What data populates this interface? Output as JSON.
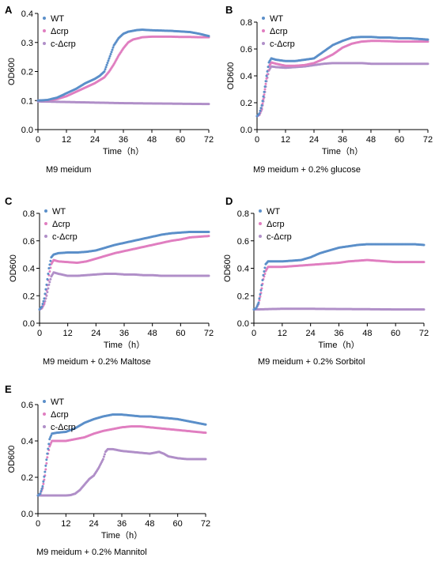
{
  "chart_data": [
    {
      "panel": "A",
      "type": "scatter",
      "caption": "M9 meidum",
      "xlabel": "Time（h）",
      "ylabel": "OD600",
      "xlim": [
        0,
        72
      ],
      "ylim": [
        0,
        0.4
      ],
      "xticks": [
        0,
        12,
        24,
        36,
        48,
        60,
        72
      ],
      "yticks": [
        0.0,
        0.1,
        0.2,
        0.3,
        0.4
      ],
      "ytick_labels": [
        "0.0",
        "0.1",
        "0.2",
        "0.3",
        "0.4"
      ],
      "legend": "top-left",
      "series": [
        {
          "name": "WT",
          "color": "#5b8fc9",
          "x": [
            0,
            4,
            8,
            12,
            16,
            20,
            24,
            26,
            28,
            30,
            32,
            34,
            36,
            38,
            40,
            42,
            44,
            46,
            48,
            52,
            56,
            60,
            64,
            68,
            72
          ],
          "y": [
            0.1,
            0.102,
            0.11,
            0.125,
            0.14,
            0.16,
            0.175,
            0.185,
            0.2,
            0.245,
            0.29,
            0.315,
            0.33,
            0.337,
            0.34,
            0.343,
            0.344,
            0.343,
            0.342,
            0.341,
            0.34,
            0.338,
            0.336,
            0.33,
            0.322
          ]
        },
        {
          "name": "Δcrp",
          "color": "#e07ec0",
          "x": [
            0,
            4,
            8,
            12,
            16,
            20,
            24,
            28,
            30,
            32,
            34,
            36,
            38,
            40,
            44,
            48,
            52,
            56,
            60,
            64,
            68,
            72
          ],
          "y": [
            0.1,
            0.101,
            0.105,
            0.115,
            0.13,
            0.145,
            0.16,
            0.18,
            0.2,
            0.225,
            0.255,
            0.28,
            0.3,
            0.31,
            0.318,
            0.32,
            0.32,
            0.32,
            0.319,
            0.319,
            0.318,
            0.318
          ]
        },
        {
          "name": "c-Δcrp",
          "color": "#b08fc8",
          "x": [
            0,
            12,
            24,
            36,
            48,
            60,
            72
          ],
          "y": [
            0.097,
            0.095,
            0.093,
            0.091,
            0.09,
            0.089,
            0.088
          ]
        }
      ]
    },
    {
      "panel": "B",
      "type": "scatter",
      "caption": "M9 meidum + 0.2% glucose",
      "xlabel": "Time（h）",
      "ylabel": "OD600",
      "xlim": [
        0,
        72
      ],
      "ylim": [
        0,
        0.8
      ],
      "xticks": [
        0,
        12,
        24,
        36,
        48,
        60,
        72
      ],
      "yticks": [
        0.0,
        0.2,
        0.4,
        0.6,
        0.8
      ],
      "ytick_labels": [
        "0.0",
        "0.2",
        "0.4",
        "0.6",
        "0.8"
      ],
      "legend": "top-left",
      "series": [
        {
          "name": "WT",
          "color": "#5b8fc9",
          "x": [
            0,
            1,
            2,
            3,
            4,
            5,
            6,
            8,
            12,
            16,
            20,
            24,
            28,
            32,
            36,
            40,
            44,
            48,
            52,
            56,
            60,
            64,
            68,
            72
          ],
          "y": [
            0.1,
            0.12,
            0.18,
            0.28,
            0.4,
            0.5,
            0.53,
            0.52,
            0.51,
            0.51,
            0.52,
            0.53,
            0.58,
            0.63,
            0.66,
            0.685,
            0.69,
            0.69,
            0.685,
            0.685,
            0.68,
            0.68,
            0.675,
            0.67
          ]
        },
        {
          "name": "Δcrp",
          "color": "#e07ec0",
          "x": [
            0,
            1,
            2,
            3,
            4,
            5,
            6,
            8,
            12,
            16,
            20,
            24,
            28,
            32,
            36,
            40,
            44,
            48,
            52,
            56,
            60,
            64,
            68,
            72
          ],
          "y": [
            0.1,
            0.11,
            0.16,
            0.26,
            0.38,
            0.47,
            0.5,
            0.49,
            0.475,
            0.475,
            0.48,
            0.495,
            0.525,
            0.56,
            0.61,
            0.64,
            0.655,
            0.66,
            0.66,
            0.658,
            0.655,
            0.655,
            0.655,
            0.655
          ]
        },
        {
          "name": "c-Δcrp",
          "color": "#b08fc8",
          "x": [
            0,
            1,
            2,
            3,
            4,
            5,
            6,
            8,
            12,
            16,
            20,
            24,
            28,
            32,
            36,
            40,
            44,
            48,
            52,
            56,
            60,
            64,
            68,
            72
          ],
          "y": [
            0.1,
            0.11,
            0.15,
            0.24,
            0.36,
            0.44,
            0.47,
            0.465,
            0.46,
            0.465,
            0.47,
            0.48,
            0.49,
            0.495,
            0.495,
            0.495,
            0.495,
            0.49,
            0.49,
            0.49,
            0.49,
            0.49,
            0.49,
            0.49
          ]
        }
      ]
    },
    {
      "panel": "C",
      "type": "scatter",
      "caption": "M9 meidum + 0.2% Maltose",
      "xlabel": "Time（h）",
      "ylabel": "OD600",
      "xlim": [
        0,
        72
      ],
      "ylim": [
        0,
        0.8
      ],
      "xticks": [
        0,
        12,
        24,
        36,
        48,
        60,
        72
      ],
      "yticks": [
        0.0,
        0.2,
        0.4,
        0.6,
        0.8
      ],
      "ytick_labels": [
        "0.0",
        "0.2",
        "0.4",
        "0.6",
        "0.8"
      ],
      "legend": "top-left",
      "series": [
        {
          "name": "WT",
          "color": "#5b8fc9",
          "x": [
            0,
            1,
            2,
            3,
            4,
            5,
            6,
            8,
            12,
            16,
            20,
            24,
            28,
            32,
            36,
            40,
            44,
            48,
            52,
            56,
            60,
            64,
            68,
            72
          ],
          "y": [
            0.1,
            0.12,
            0.18,
            0.28,
            0.4,
            0.48,
            0.5,
            0.51,
            0.515,
            0.515,
            0.52,
            0.53,
            0.55,
            0.57,
            0.585,
            0.6,
            0.615,
            0.63,
            0.645,
            0.655,
            0.66,
            0.665,
            0.665,
            0.665
          ]
        },
        {
          "name": "Δcrp",
          "color": "#e07ec0",
          "x": [
            0,
            1,
            2,
            3,
            4,
            5,
            6,
            8,
            12,
            16,
            20,
            24,
            28,
            32,
            36,
            40,
            44,
            48,
            52,
            56,
            60,
            64,
            68,
            72
          ],
          "y": [
            0.1,
            0.11,
            0.15,
            0.24,
            0.35,
            0.43,
            0.46,
            0.45,
            0.445,
            0.44,
            0.45,
            0.47,
            0.49,
            0.51,
            0.525,
            0.54,
            0.555,
            0.57,
            0.585,
            0.6,
            0.61,
            0.625,
            0.63,
            0.635
          ]
        },
        {
          "name": "c-Δcrp",
          "color": "#b08fc8",
          "x": [
            0,
            1,
            2,
            3,
            4,
            5,
            6,
            8,
            12,
            16,
            20,
            24,
            28,
            32,
            36,
            40,
            44,
            48,
            52,
            56,
            60,
            64,
            68,
            72
          ],
          "y": [
            0.1,
            0.11,
            0.14,
            0.2,
            0.28,
            0.34,
            0.37,
            0.36,
            0.345,
            0.345,
            0.35,
            0.355,
            0.36,
            0.36,
            0.355,
            0.355,
            0.35,
            0.35,
            0.345,
            0.345,
            0.345,
            0.345,
            0.345,
            0.345
          ]
        }
      ]
    },
    {
      "panel": "D",
      "type": "scatter",
      "caption": "M9 meidum + 0.2% Sorbitol",
      "xlabel": "Time（h）",
      "ylabel": "OD600",
      "xlim": [
        0,
        72
      ],
      "ylim": [
        0,
        0.8
      ],
      "xticks": [
        0,
        12,
        24,
        36,
        48,
        60,
        72
      ],
      "yticks": [
        0.0,
        0.2,
        0.4,
        0.6,
        0.8
      ],
      "ytick_labels": [
        "0.0",
        "0.2",
        "0.4",
        "0.6",
        "0.8"
      ],
      "legend": "top-left",
      "series": [
        {
          "name": "WT",
          "color": "#5b8fc9",
          "x": [
            0,
            1,
            2,
            3,
            4,
            5,
            6,
            8,
            12,
            16,
            20,
            24,
            28,
            32,
            36,
            40,
            44,
            48,
            52,
            56,
            60,
            64,
            68,
            72
          ],
          "y": [
            0.1,
            0.11,
            0.15,
            0.24,
            0.35,
            0.43,
            0.45,
            0.45,
            0.45,
            0.455,
            0.46,
            0.48,
            0.51,
            0.53,
            0.55,
            0.56,
            0.57,
            0.575,
            0.575,
            0.575,
            0.575,
            0.575,
            0.575,
            0.57
          ]
        },
        {
          "name": "Δcrp",
          "color": "#e07ec0",
          "x": [
            0,
            1,
            2,
            3,
            4,
            5,
            6,
            8,
            12,
            16,
            20,
            24,
            28,
            32,
            36,
            40,
            44,
            48,
            52,
            56,
            60,
            64,
            68,
            72
          ],
          "y": [
            0.1,
            0.11,
            0.14,
            0.22,
            0.32,
            0.38,
            0.41,
            0.41,
            0.41,
            0.415,
            0.42,
            0.425,
            0.43,
            0.435,
            0.44,
            0.45,
            0.455,
            0.46,
            0.455,
            0.45,
            0.445,
            0.445,
            0.445,
            0.445
          ]
        },
        {
          "name": "c-Δcrp",
          "color": "#b08fc8",
          "x": [
            0,
            12,
            24,
            36,
            48,
            60,
            72
          ],
          "y": [
            0.1,
            0.105,
            0.105,
            0.103,
            0.102,
            0.1,
            0.1
          ]
        }
      ]
    },
    {
      "panel": "E",
      "type": "scatter",
      "caption": "M9 meidum + 0.2% Mannitol",
      "xlabel": "Time（h）",
      "ylabel": "OD600",
      "xlim": [
        0,
        72
      ],
      "ylim": [
        0,
        0.6
      ],
      "xticks": [
        0,
        12,
        24,
        36,
        48,
        60,
        72
      ],
      "yticks": [
        0.0,
        0.2,
        0.4,
        0.6
      ],
      "ytick_labels": [
        "0.0",
        "0.2",
        "0.4",
        "0.6"
      ],
      "legend": "top-left",
      "series": [
        {
          "name": "WT",
          "color": "#5b8fc9",
          "x": [
            0,
            1,
            2,
            3,
            4,
            5,
            6,
            8,
            12,
            16,
            20,
            24,
            28,
            32,
            36,
            40,
            44,
            48,
            52,
            56,
            60,
            64,
            68,
            72
          ],
          "y": [
            0.1,
            0.11,
            0.15,
            0.23,
            0.33,
            0.41,
            0.44,
            0.445,
            0.45,
            0.47,
            0.5,
            0.52,
            0.535,
            0.545,
            0.545,
            0.54,
            0.535,
            0.535,
            0.53,
            0.525,
            0.52,
            0.51,
            0.5,
            0.49
          ]
        },
        {
          "name": "Δcrp",
          "color": "#e07ec0",
          "x": [
            0,
            1,
            2,
            3,
            4,
            5,
            6,
            8,
            12,
            16,
            20,
            24,
            28,
            32,
            36,
            40,
            44,
            48,
            52,
            56,
            60,
            64,
            68,
            72
          ],
          "y": [
            0.1,
            0.11,
            0.14,
            0.21,
            0.31,
            0.37,
            0.4,
            0.4,
            0.4,
            0.41,
            0.42,
            0.44,
            0.455,
            0.465,
            0.475,
            0.48,
            0.48,
            0.475,
            0.47,
            0.465,
            0.46,
            0.455,
            0.45,
            0.445
          ]
        },
        {
          "name": "c-Δcrp",
          "color": "#b08fc8",
          "x": [
            0,
            4,
            8,
            12,
            14,
            16,
            18,
            20,
            22,
            24,
            26,
            28,
            29,
            30,
            32,
            34,
            36,
            40,
            44,
            48,
            50,
            52,
            54,
            56,
            60,
            64,
            68,
            72
          ],
          "y": [
            0.1,
            0.1,
            0.1,
            0.1,
            0.102,
            0.11,
            0.13,
            0.16,
            0.19,
            0.21,
            0.25,
            0.3,
            0.34,
            0.355,
            0.355,
            0.35,
            0.345,
            0.34,
            0.335,
            0.33,
            0.335,
            0.34,
            0.33,
            0.315,
            0.305,
            0.3,
            0.3,
            0.3
          ]
        }
      ]
    }
  ]
}
